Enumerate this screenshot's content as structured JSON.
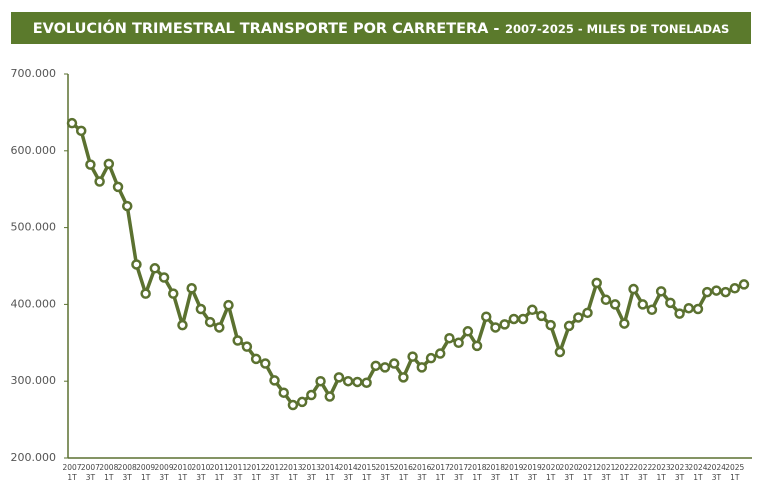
{
  "chart_data": {
    "type": "line",
    "title": "EVOLUCIÓN TRIMESTRAL TRANSPORTE POR CARRETERA -",
    "subtitle": "2007-2025 - MILES DE TONELADAS",
    "categories": [
      "2007\n1T",
      null,
      "2007\n3T",
      null,
      "2008\n1T",
      null,
      "2008\n3T",
      null,
      "2009\n1T",
      null,
      "2009\n3T",
      null,
      "2010\n1T",
      null,
      "2010\n3T",
      null,
      "2011\n1T",
      null,
      "2011\n3T",
      null,
      "2012\n1T",
      null,
      "2012\n3T",
      null,
      "2013\n1T",
      null,
      "2013\n3T",
      null,
      "2014\n1T",
      null,
      "2014\n3T",
      null,
      "2015\n1T",
      null,
      "2015\n3T",
      null,
      "2016\n1T",
      null,
      "2016\n3T",
      null,
      "2017\n1T",
      null,
      "2017\n3T",
      null,
      "2018\n1T",
      null,
      "2018\n3T",
      null,
      "2019\n1T",
      null,
      "2019\n3T",
      null,
      "2020\n1T",
      null,
      "2020\n3T",
      null,
      "2021\n1T",
      null,
      "2021\n3T",
      null,
      "2022\n1T",
      null,
      "2022\n3T",
      null,
      "2023\n1T",
      null,
      "2023\n3T",
      null,
      "2024\n1T",
      null,
      "2024\n3T",
      null,
      "2025\n1T",
      null
    ],
    "values": [
      636000,
      626000,
      582000,
      560000,
      583000,
      553000,
      528000,
      452000,
      414000,
      447000,
      435000,
      414000,
      373000,
      421000,
      394000,
      377000,
      370000,
      399000,
      353000,
      345000,
      329000,
      323000,
      301000,
      285000,
      269000,
      273000,
      282000,
      300000,
      280000,
      305000,
      300000,
      299000,
      298000,
      320000,
      318000,
      323000,
      305000,
      332000,
      318000,
      330000,
      336000,
      356000,
      350000,
      365000,
      346000,
      384000,
      370000,
      374000,
      381000,
      381000,
      393000,
      385000,
      373000,
      338000,
      372000,
      383000,
      389000,
      428000,
      406000,
      400000,
      375000,
      420000,
      400000,
      393000,
      417000,
      402000,
      388000,
      395000,
      394000,
      416000,
      418000,
      416000,
      421000,
      426000
    ],
    "color": "#5b7130",
    "ylim": [
      200000,
      700000
    ],
    "yticks": [
      {
        "value": 200000,
        "label": "200.000"
      },
      {
        "value": 300000,
        "label": "300.000"
      },
      {
        "value": 400000,
        "label": "400.000"
      },
      {
        "value": 500000,
        "label": "500.000"
      },
      {
        "value": 600000,
        "label": "600.000"
      },
      {
        "value": 700000,
        "label": "700.000"
      }
    ]
  }
}
